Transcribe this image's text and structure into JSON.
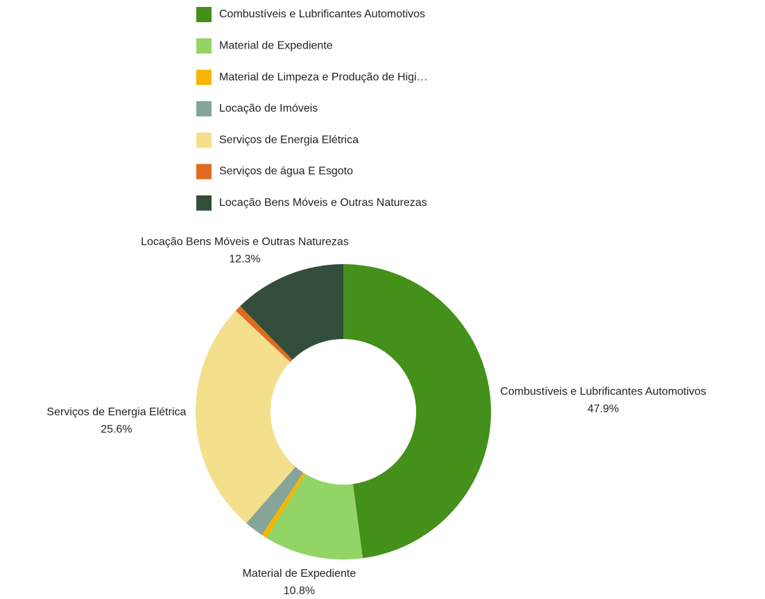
{
  "chart_data": {
    "type": "donut",
    "categories": [
      "Combustíveis e Lubrificantes Automotivos",
      "Material de Expediente",
      "Material de Limpeza e Produção de Higi…",
      "Locação de Imóveis",
      "Serviços de Energia Elétrica",
      "Serviços de água E Esgoto",
      "Locação Bens Móveis e Outras Naturezas"
    ],
    "values": [
      47.9,
      10.8,
      0.6,
      2.1,
      25.6,
      0.7,
      12.3
    ],
    "value_labels": [
      "47.9%",
      "10.8%",
      null,
      null,
      "25.6%",
      null,
      "12.3%"
    ],
    "colors": [
      "#43901a",
      "#93d466",
      "#f7b500",
      "#84a597",
      "#f4df8c",
      "#e06b1e",
      "#324e3a"
    ],
    "legend": "top"
  }
}
